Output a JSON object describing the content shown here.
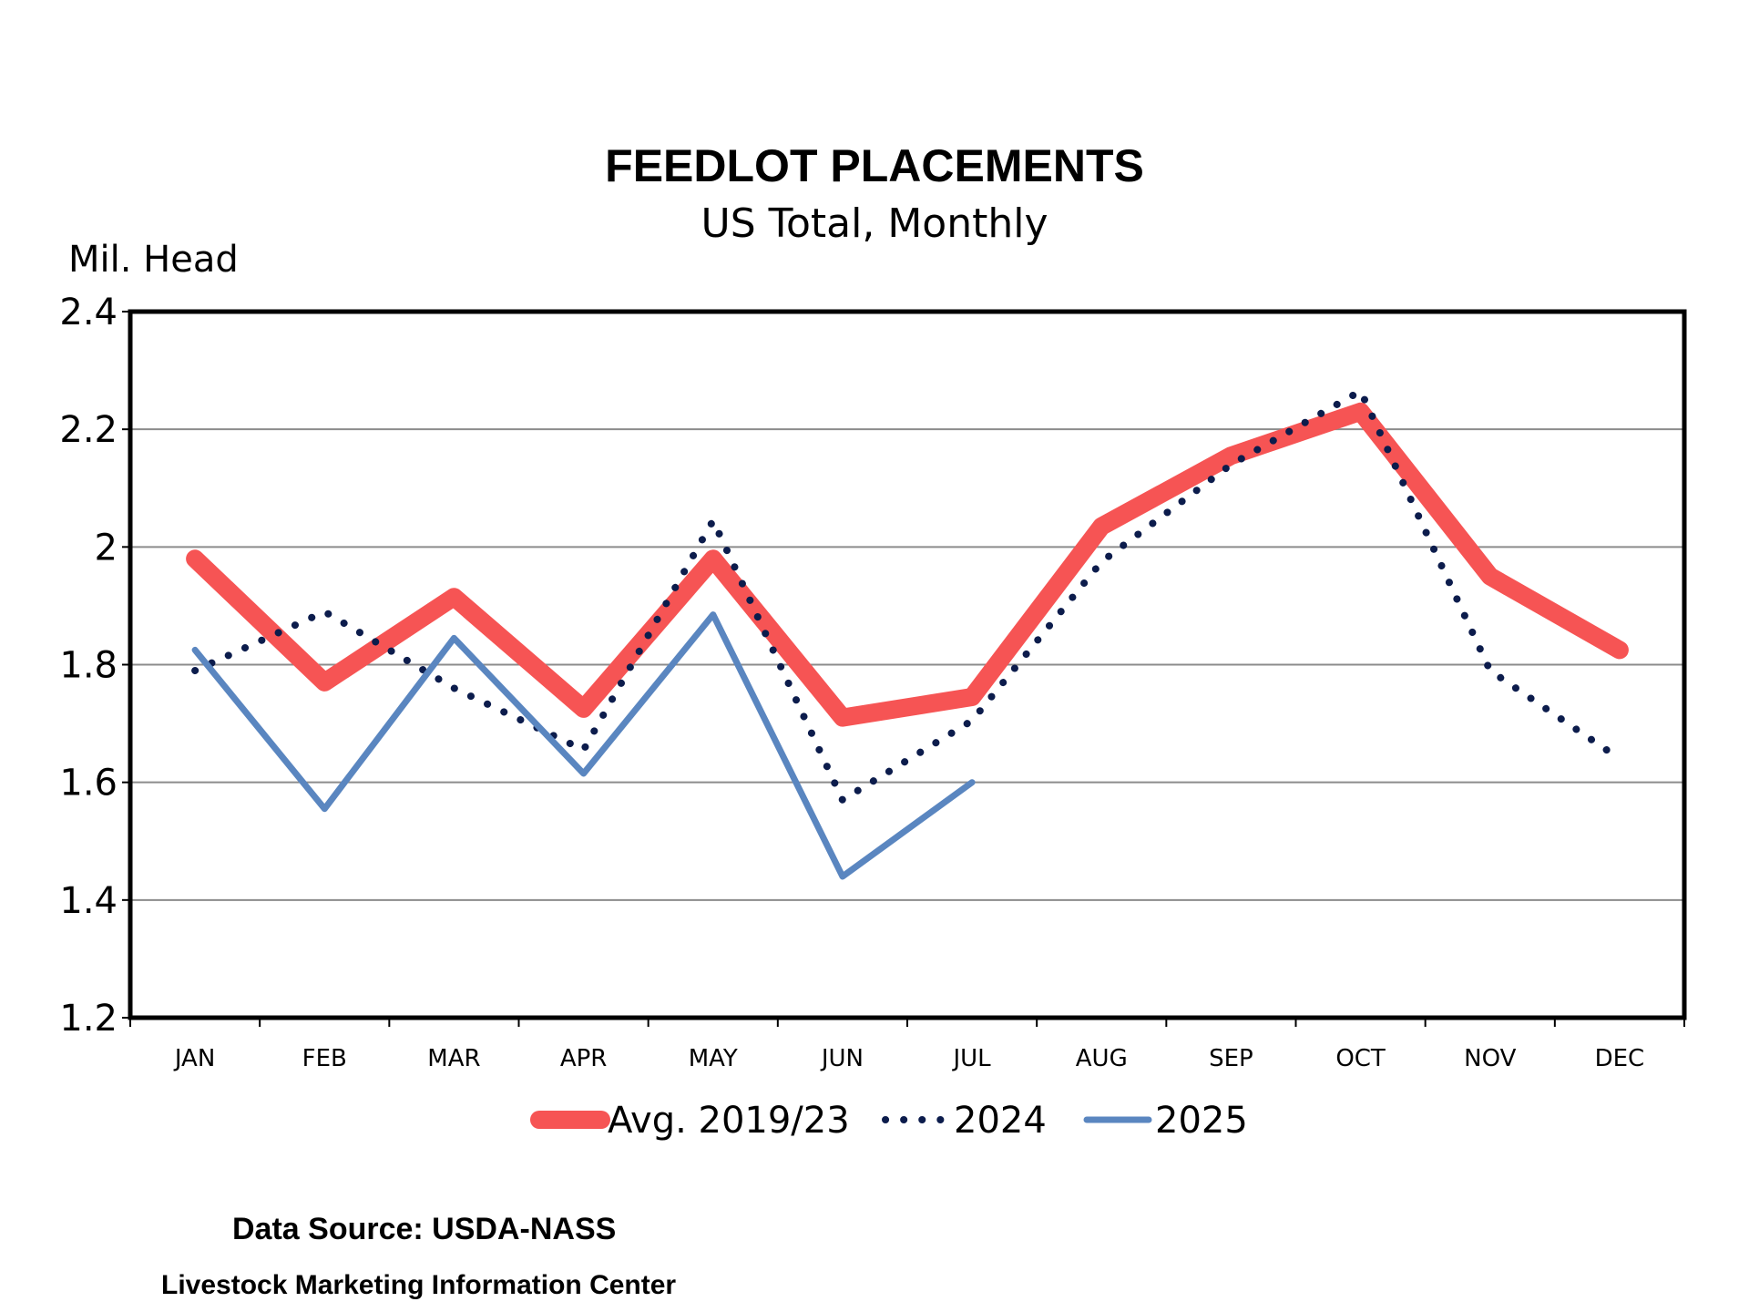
{
  "chart_data": {
    "type": "line",
    "title": "FEEDLOT PLACEMENTS",
    "subtitle": "US Total, Monthly",
    "ylabel": "Mil. Head",
    "xlabel": "",
    "ylim": [
      1.2,
      2.4
    ],
    "yticks": [
      "1.2",
      "1.4",
      "1.6",
      "1.8",
      "2",
      "2.2",
      "2.4"
    ],
    "grid": true,
    "legend_placement": "bottom",
    "categories": [
      "JAN",
      "FEB",
      "MAR",
      "APR",
      "MAY",
      "JUN",
      "JUL",
      "AUG",
      "SEP",
      "OCT",
      "NOV",
      "DEC"
    ],
    "series": [
      {
        "name": "Avg. 2019/23",
        "style": "thick-solid",
        "color": "#f65454",
        "values": [
          1.98,
          1.77,
          1.915,
          1.725,
          1.98,
          1.71,
          1.745,
          2.035,
          2.155,
          2.23,
          1.95,
          1.825
        ]
      },
      {
        "name": "2024",
        "style": "dotted",
        "color": "#0c1c4c",
        "values": [
          1.79,
          1.89,
          1.76,
          1.655,
          2.045,
          1.57,
          1.705,
          1.975,
          2.14,
          2.265,
          1.79,
          1.64
        ]
      },
      {
        "name": "2025",
        "style": "solid",
        "color": "#5a86c0",
        "values": [
          1.825,
          1.555,
          1.845,
          1.615,
          1.885,
          1.44,
          1.6,
          null,
          null,
          null,
          null,
          null
        ]
      }
    ]
  },
  "footer": {
    "source": "Data Source:  USDA-NASS",
    "credit": "Livestock Marketing Information Center"
  }
}
